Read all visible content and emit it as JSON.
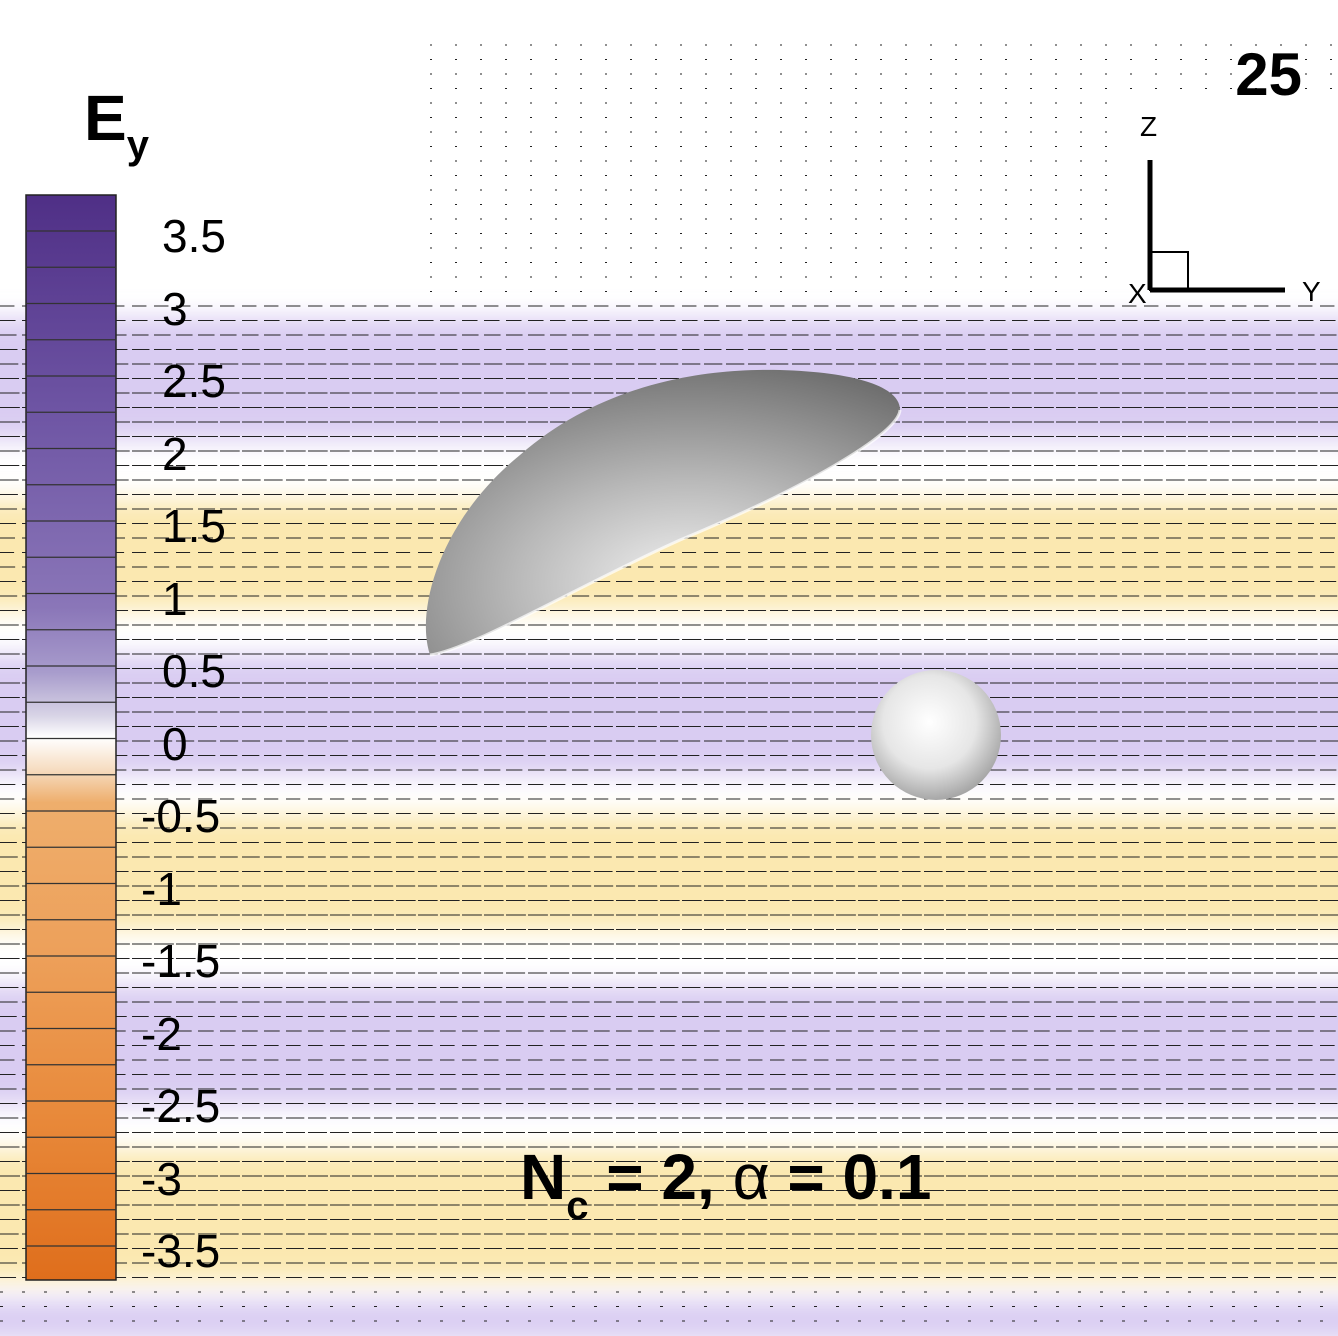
{
  "frame_number": "25",
  "colorbar": {
    "title_main": "E",
    "title_sub": "y",
    "ticks": [
      "3.5",
      "3",
      "2.5",
      "2",
      "1.5",
      "1",
      "0.5",
      "0",
      "-0.5",
      "-1",
      "-1.5",
      "-2",
      "-2.5",
      "-3",
      "-3.5"
    ],
    "positive_color": "#5b3a93",
    "negative_color": "#e0701e"
  },
  "axes_triad": {
    "z": "Z",
    "x": "X",
    "y": "Y"
  },
  "parameters": {
    "n_symbol": "N",
    "n_sub": "c",
    "n_rest": " = 2, ",
    "alpha_symbol": "α",
    "alpha_rest": " = 0.1"
  }
}
